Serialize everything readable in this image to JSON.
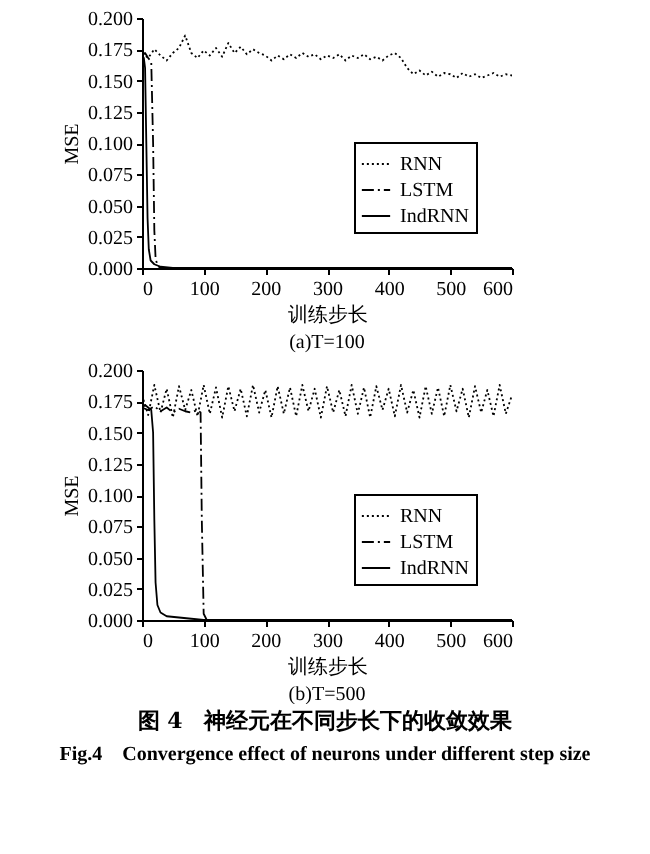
{
  "chart_data": [
    {
      "type": "line",
      "title": "(a)T=100",
      "xlabel": "训练步长",
      "ylabel": "MSE",
      "xlim": [
        0,
        600
      ],
      "xticks": [
        0,
        100,
        200,
        300,
        400,
        500,
        600
      ],
      "ylim": [
        0,
        0.2
      ],
      "yticks": [
        {
          "value": 0,
          "label": "0.000"
        },
        {
          "value": 0.025,
          "label": "0.025"
        },
        {
          "value": 0.05,
          "label": "0.050"
        },
        {
          "value": 0.075,
          "label": "0.075"
        },
        {
          "value": 0.1,
          "label": "0.100"
        },
        {
          "value": 0.125,
          "label": "0.125"
        },
        {
          "value": 0.15,
          "label": "0.150"
        },
        {
          "value": 0.175,
          "label": "0.175"
        },
        {
          "value": 0.2,
          "label": "0.200"
        }
      ],
      "grid": false,
      "legend": "bottom right",
      "series": [
        {
          "name": "RNN",
          "color": "#000000",
          "line_style": "dotted",
          "x": [
            0,
            10,
            20,
            30,
            40,
            50,
            60,
            70,
            80,
            90,
            100,
            110,
            120,
            130,
            140,
            150,
            160,
            170,
            180,
            190,
            200,
            210,
            220,
            230,
            240,
            250,
            260,
            270,
            280,
            290,
            300,
            310,
            320,
            330,
            340,
            350,
            360,
            370,
            380,
            390,
            400,
            410,
            420,
            430,
            440,
            450,
            460,
            470,
            480,
            490,
            500,
            510,
            520,
            530,
            540,
            550,
            560,
            570,
            580,
            590,
            600
          ],
          "values": [
            0.172,
            0.168,
            0.175,
            0.17,
            0.166,
            0.172,
            0.176,
            0.186,
            0.172,
            0.168,
            0.174,
            0.17,
            0.176,
            0.169,
            0.18,
            0.172,
            0.177,
            0.171,
            0.175,
            0.172,
            0.17,
            0.166,
            0.17,
            0.167,
            0.171,
            0.168,
            0.172,
            0.169,
            0.171,
            0.167,
            0.17,
            0.168,
            0.171,
            0.166,
            0.17,
            0.168,
            0.171,
            0.167,
            0.169,
            0.166,
            0.17,
            0.172,
            0.168,
            0.16,
            0.155,
            0.158,
            0.154,
            0.157,
            0.153,
            0.156,
            0.155,
            0.152,
            0.156,
            0.153,
            0.155,
            0.152,
            0.154,
            0.156,
            0.153,
            0.155,
            0.154
          ]
        },
        {
          "name": "LSTM",
          "color": "#000000",
          "line_style": "dashed",
          "x": [
            0,
            5,
            10,
            15,
            18,
            20,
            22,
            25,
            30,
            600
          ],
          "values": [
            0.17,
            0.172,
            0.168,
            0.165,
            0.1,
            0.03,
            0.008,
            0.002,
            0.0,
            0.0
          ]
        },
        {
          "name": "IndRNN",
          "color": "#000000",
          "line_style": "solid",
          "x": [
            0,
            3,
            5,
            7,
            9,
            11,
            14,
            20,
            30,
            50,
            600
          ],
          "values": [
            0.17,
            0.168,
            0.16,
            0.1,
            0.04,
            0.015,
            0.006,
            0.003,
            0.001,
            0.0,
            0.0
          ]
        }
      ]
    },
    {
      "type": "line",
      "title": "(b)T=500",
      "xlabel": "训练步长",
      "ylabel": "MSE",
      "xlim": [
        0,
        600
      ],
      "xticks": [
        0,
        100,
        200,
        300,
        400,
        500,
        600
      ],
      "ylim": [
        0,
        0.2
      ],
      "yticks": [
        {
          "value": 0,
          "label": "0.000"
        },
        {
          "value": 0.025,
          "label": "0.025"
        },
        {
          "value": 0.05,
          "label": "0.050"
        },
        {
          "value": 0.075,
          "label": "0.075"
        },
        {
          "value": 0.1,
          "label": "0.100"
        },
        {
          "value": 0.125,
          "label": "0.125"
        },
        {
          "value": 0.15,
          "label": "0.150"
        },
        {
          "value": 0.175,
          "label": "0.175"
        },
        {
          "value": 0.2,
          "label": "0.200"
        }
      ],
      "grid": false,
      "legend": "bottom right",
      "annotations": [
        "图 4　神经元在不同步长下的收敛效果",
        "Fig.4　Convergence effect of neurons under different step size"
      ],
      "series": [
        {
          "name": "RNN",
          "color": "#000000",
          "line_style": "dotted",
          "x": [
            0,
            10,
            20,
            30,
            40,
            50,
            60,
            70,
            80,
            90,
            100,
            110,
            120,
            130,
            140,
            150,
            160,
            170,
            180,
            190,
            200,
            210,
            220,
            230,
            240,
            250,
            260,
            270,
            280,
            290,
            300,
            310,
            320,
            330,
            340,
            350,
            360,
            370,
            380,
            390,
            400,
            410,
            420,
            430,
            440,
            450,
            460,
            470,
            480,
            490,
            500,
            510,
            520,
            530,
            540,
            550,
            560,
            570,
            580,
            590,
            600
          ],
          "values": [
            0.18,
            0.164,
            0.188,
            0.166,
            0.185,
            0.162,
            0.187,
            0.168,
            0.184,
            0.163,
            0.188,
            0.165,
            0.186,
            0.162,
            0.187,
            0.167,
            0.185,
            0.163,
            0.188,
            0.166,
            0.184,
            0.162,
            0.187,
            0.165,
            0.186,
            0.163,
            0.188,
            0.167,
            0.185,
            0.162,
            0.187,
            0.166,
            0.184,
            0.163,
            0.188,
            0.165,
            0.186,
            0.162,
            0.187,
            0.168,
            0.185,
            0.163,
            0.188,
            0.166,
            0.184,
            0.162,
            0.187,
            0.165,
            0.186,
            0.163,
            0.188,
            0.167,
            0.185,
            0.162,
            0.187,
            0.166,
            0.184,
            0.163,
            0.188,
            0.165,
            0.18
          ]
        },
        {
          "name": "LSTM",
          "color": "#000000",
          "line_style": "dashed",
          "x": [
            0,
            10,
            20,
            30,
            40,
            50,
            60,
            70,
            80,
            90,
            95,
            97,
            100,
            105,
            600
          ],
          "values": [
            0.17,
            0.168,
            0.171,
            0.167,
            0.17,
            0.166,
            0.169,
            0.167,
            0.166,
            0.168,
            0.166,
            0.08,
            0.005,
            0.0,
            0.0
          ]
        },
        {
          "name": "IndRNN",
          "color": "#000000",
          "line_style": "solid",
          "x": [
            0,
            5,
            10,
            15,
            18,
            20,
            22,
            25,
            30,
            40,
            60,
            80,
            100,
            600
          ],
          "values": [
            0.17,
            0.172,
            0.17,
            0.168,
            0.15,
            0.08,
            0.03,
            0.012,
            0.006,
            0.003,
            0.002,
            0.001,
            0.0,
            0.0
          ]
        }
      ]
    }
  ]
}
